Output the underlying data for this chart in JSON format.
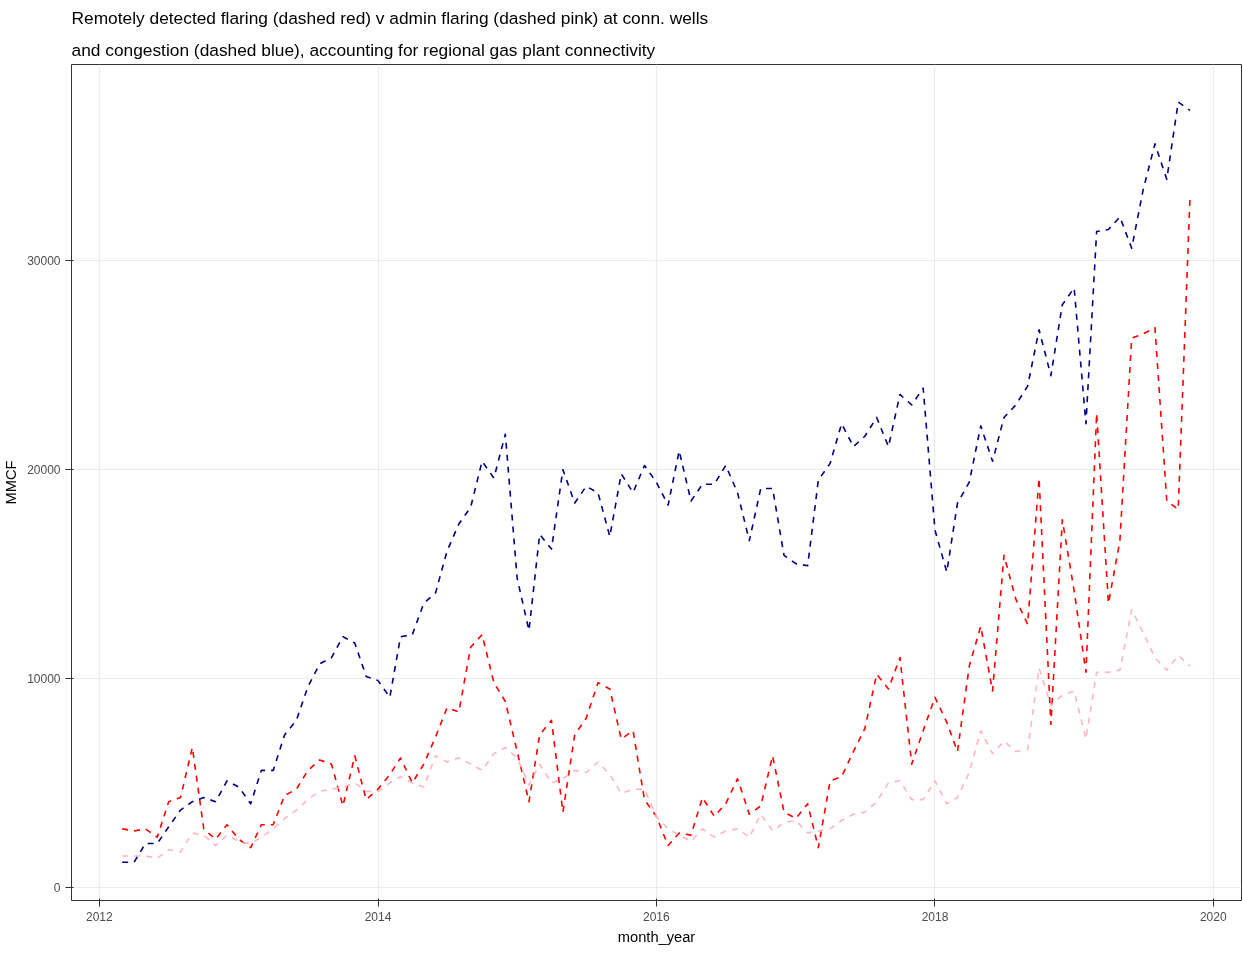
{
  "chart_data": {
    "type": "line",
    "title": "Remotely detected flaring (dashed red) v admin flaring (dashed pink) at conn. wells\nand congestion (dashed blue), accounting for regional gas plant connectivity",
    "xlabel": "month_year",
    "ylabel": "MMCF",
    "line_style": "dashed",
    "grid": true,
    "marker": "none",
    "x": [
      "2012-03",
      "2012-04",
      "2012-05",
      "2012-06",
      "2012-07",
      "2012-08",
      "2012-09",
      "2012-10",
      "2012-11",
      "2012-12",
      "2013-01",
      "2013-02",
      "2013-03",
      "2013-04",
      "2013-05",
      "2013-06",
      "2013-07",
      "2013-08",
      "2013-09",
      "2013-10",
      "2013-11",
      "2013-12",
      "2014-01",
      "2014-02",
      "2014-03",
      "2014-04",
      "2014-05",
      "2014-06",
      "2014-07",
      "2014-08",
      "2014-09",
      "2014-10",
      "2014-11",
      "2014-12",
      "2015-01",
      "2015-02",
      "2015-03",
      "2015-04",
      "2015-05",
      "2015-06",
      "2015-07",
      "2015-08",
      "2015-09",
      "2015-10",
      "2015-11",
      "2015-12",
      "2016-01",
      "2016-02",
      "2016-03",
      "2016-04",
      "2016-05",
      "2016-06",
      "2016-07",
      "2016-08",
      "2016-09",
      "2016-10",
      "2016-11",
      "2016-12",
      "2017-01",
      "2017-02",
      "2017-03",
      "2017-04",
      "2017-05",
      "2017-06",
      "2017-07",
      "2017-08",
      "2017-09",
      "2017-10",
      "2017-11",
      "2017-12",
      "2018-01",
      "2018-02",
      "2018-03",
      "2018-04",
      "2018-05",
      "2018-06",
      "2018-07",
      "2018-08",
      "2018-09",
      "2018-10",
      "2018-11",
      "2018-12",
      "2019-01",
      "2019-02",
      "2019-03",
      "2019-04",
      "2019-05",
      "2019-06",
      "2019-07",
      "2019-08",
      "2019-09",
      "2019-10",
      "2019-11"
    ],
    "xlim": [
      "2011-10-20",
      "2020-03-15"
    ],
    "xticks": [
      "2012",
      "2014",
      "2016",
      "2018",
      "2020"
    ],
    "ylim": [
      -630,
      39400
    ],
    "yticks": [
      0,
      10000,
      20000,
      30000
    ],
    "series": [
      {
        "color": "#ff0000",
        "values": [
          2800,
          2700,
          2800,
          2400,
          4100,
          4300,
          6700,
          2800,
          2300,
          3000,
          2300,
          1900,
          3000,
          3000,
          4400,
          4700,
          5600,
          6100,
          5900,
          3900,
          6300,
          4200,
          4700,
          5400,
          6200,
          5000,
          5900,
          7200,
          8600,
          8400,
          11500,
          12100,
          9800,
          8900,
          6500,
          4100,
          7300,
          8000,
          3600,
          7300,
          8100,
          9800,
          9500,
          7100,
          7500,
          4200,
          3400,
          2000,
          2600,
          2500,
          4300,
          3400,
          4000,
          5200,
          3500,
          3900,
          6300,
          3600,
          3300,
          4000,
          1900,
          5100,
          5300,
          6500,
          7600,
          10200,
          9500,
          11000,
          5900,
          7500,
          9100,
          7900,
          6500,
          10600,
          12500,
          9400,
          15900,
          13800,
          12600,
          19600,
          7800,
          17600,
          14200,
          10300,
          22700,
          13600,
          16600,
          26300,
          26500,
          26800,
          18500,
          18100,
          33100
        ]
      },
      {
        "color": "#ffb6c1",
        "values": [
          1500,
          1500,
          1500,
          1400,
          1800,
          1700,
          2600,
          2500,
          2000,
          2500,
          2200,
          2100,
          2400,
          2800,
          3300,
          3700,
          4200,
          4600,
          4700,
          4800,
          5000,
          4600,
          4600,
          5000,
          5300,
          5000,
          4800,
          6300,
          6000,
          6200,
          5900,
          5600,
          6400,
          6700,
          6200,
          4900,
          5900,
          5000,
          5200,
          5600,
          5500,
          6000,
          5400,
          4500,
          4700,
          4700,
          3400,
          2800,
          2500,
          2200,
          2800,
          2400,
          2700,
          2800,
          2400,
          3500,
          2700,
          3100,
          3200,
          2600,
          2700,
          2800,
          3200,
          3500,
          3600,
          4100,
          5000,
          5100,
          4200,
          4200,
          5100,
          4000,
          4300,
          5500,
          7500,
          6400,
          7000,
          6500,
          6600,
          10500,
          8700,
          9200,
          9400,
          7100,
          10300,
          10300,
          10400,
          13300,
          12200,
          11000,
          10400,
          11100,
          10600
        ]
      },
      {
        "color": "#000080",
        "values": [
          1200,
          1200,
          2100,
          2100,
          2900,
          3700,
          4100,
          4300,
          4100,
          5100,
          4800,
          4000,
          5600,
          5600,
          7300,
          8000,
          9600,
          10700,
          11000,
          12000,
          11700,
          10100,
          9900,
          9100,
          12000,
          12100,
          13600,
          14100,
          16100,
          17400,
          18200,
          20400,
          19600,
          21700,
          14800,
          12300,
          16900,
          16200,
          20000,
          18400,
          19200,
          18900,
          16800,
          19800,
          18900,
          20200,
          19400,
          18300,
          20900,
          18500,
          19300,
          19300,
          20200,
          18900,
          16600,
          19100,
          19100,
          15900,
          15500,
          15400,
          19500,
          20300,
          22200,
          21100,
          21600,
          22500,
          21100,
          23600,
          23100,
          23900,
          17100,
          15100,
          18400,
          19400,
          22100,
          20400,
          22500,
          23100,
          24000,
          26700,
          24500,
          27900,
          28700,
          22200,
          31400,
          31500,
          32100,
          30600,
          33400,
          35600,
          33900,
          37600,
          37200
        ]
      }
    ]
  }
}
